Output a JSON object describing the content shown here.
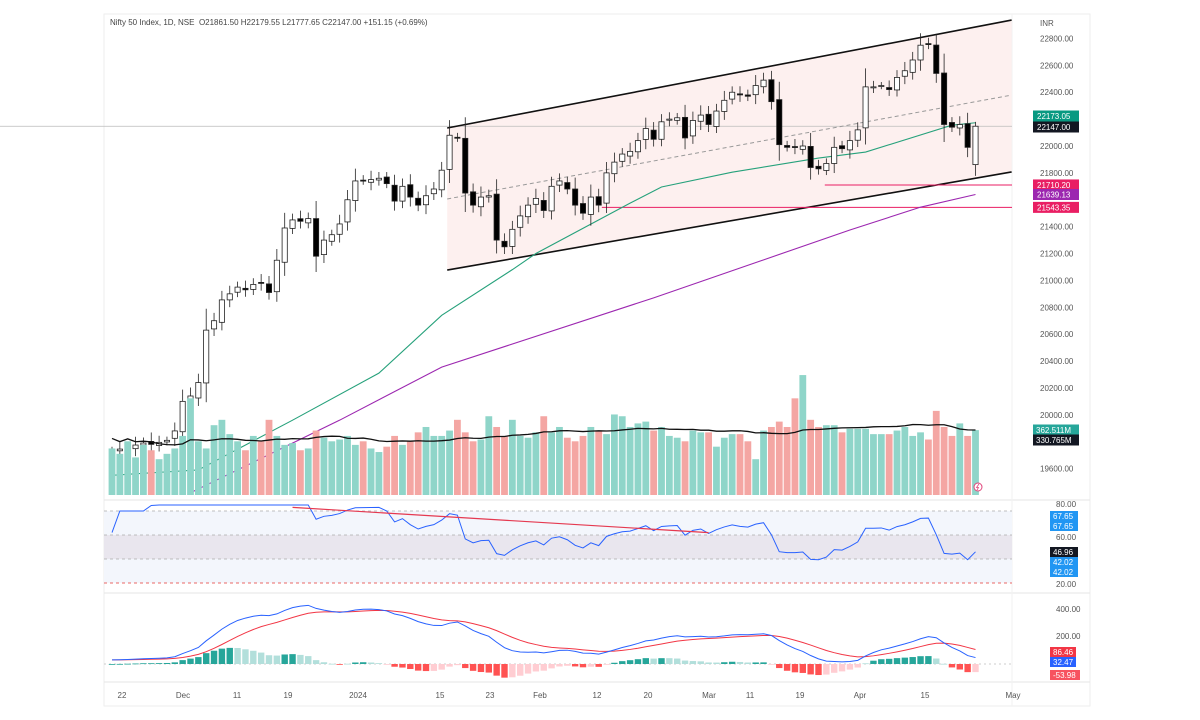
{
  "header": {
    "symbol": "Nifty 50 Index, 1D, NSE",
    "ohlc": "O21861.50 H22179.55 L21777.65 C22147.00 +151.15 (+0.69%)"
  },
  "last_bar": {
    "open": 21861.5,
    "high": 22179.55,
    "low": 21777.65,
    "close": 22147.0
  },
  "currency": "INR",
  "chart_data": [
    {
      "type": "candlestick",
      "title": "",
      "ylim": [
        19450,
        22950
      ],
      "price_ticks": [
        "22800.00",
        "22600.00",
        "22400.00",
        "22000.00",
        "21800.00",
        "21400.00",
        "21200.00",
        "21000.00",
        "20800.00",
        "20600.00",
        "20400.00",
        "20200.00",
        "20000.00",
        "19600.00"
      ],
      "date_ticks": [
        "22",
        "Dec",
        "11",
        "19",
        "2024",
        "15",
        "23",
        "Feb",
        "12",
        "20",
        "Mar",
        "11",
        "19",
        "Apr",
        "15",
        "May"
      ],
      "closes": [
        19735,
        19745,
        19760,
        19775,
        19790,
        19780,
        19795,
        19810,
        19880,
        20100,
        20140,
        20240,
        20630,
        20700,
        20855,
        20900,
        20950,
        20930,
        20970,
        20980,
        20910,
        21150,
        21390,
        21450,
        21440,
        21460,
        21180,
        21300,
        21340,
        21420,
        21600,
        21740,
        21745,
        21750,
        21760,
        21720,
        21590,
        21700,
        21620,
        21560,
        21630,
        21680,
        21820,
        22080,
        22060,
        21650,
        21560,
        21620,
        21630,
        21300,
        21250,
        21380,
        21480,
        21560,
        21610,
        21520,
        21700,
        21740,
        21680,
        21560,
        21500,
        21620,
        21560,
        21800,
        21880,
        21940,
        21960,
        22040,
        22130,
        22050,
        22180,
        22200,
        22210,
        22060,
        22190,
        22230,
        22160,
        22260,
        22340,
        22400,
        22380,
        22370,
        22450,
        22490,
        22330,
        22010,
        21990,
        21990,
        22000,
        21840,
        21830,
        21870,
        21990,
        21980,
        22040,
        22120,
        22440,
        22440,
        22450,
        22420,
        22510,
        22560,
        22640,
        22750,
        22760,
        22540,
        22160,
        22140,
        22160,
        21990,
        22147
      ],
      "volume_millions": [
        260,
        230,
        300,
        210,
        280,
        250,
        200,
        230,
        260,
        330,
        540,
        300,
        260,
        390,
        420,
        340,
        300,
        250,
        330,
        300,
        420,
        330,
        280,
        290,
        250,
        260,
        360,
        320,
        300,
        310,
        330,
        280,
        300,
        260,
        240,
        270,
        330,
        280,
        300,
        350,
        380,
        330,
        330,
        360,
        420,
        350,
        300,
        310,
        440,
        380,
        330,
        420,
        330,
        320,
        350,
        440,
        350,
        380,
        320,
        300,
        330,
        380,
        360,
        340,
        450,
        440,
        380,
        400,
        410,
        360,
        380,
        330,
        320,
        300,
        360,
        350,
        350,
        270,
        320,
        340,
        340,
        300,
        200,
        360,
        380,
        410,
        380,
        540,
        670,
        420,
        380,
        390,
        390,
        350,
        370,
        370,
        370,
        340,
        340,
        340,
        360,
        380,
        330,
        350,
        310,
        470,
        380,
        330,
        400,
        330,
        362.5
      ],
      "ema_green": [
        [
          0,
          19550
        ],
        [
          11,
          19590
        ],
        [
          23,
          19960
        ],
        [
          34,
          20310
        ],
        [
          42,
          20740
        ],
        [
          51,
          21080
        ],
        [
          54,
          21200
        ],
        [
          66,
          21575
        ],
        [
          70,
          21695
        ],
        [
          79,
          21805
        ],
        [
          90,
          21910
        ],
        [
          96,
          21955
        ],
        [
          107,
          22155
        ],
        [
          110,
          22173.05
        ]
      ],
      "ma_purple": [
        [
          10,
          19420
        ],
        [
          16,
          19590
        ],
        [
          29,
          19960
        ],
        [
          42,
          20355
        ],
        [
          69,
          20870
        ],
        [
          94,
          21375
        ],
        [
          103,
          21545
        ],
        [
          110,
          21639.13
        ]
      ],
      "channel": {
        "upper": [
          [
            42.7,
            22134
          ],
          [
            114.6,
            22937
          ]
        ],
        "middle": [
          [
            42.7,
            21606
          ],
          [
            114.6,
            22379
          ]
        ],
        "lower": [
          [
            42.7,
            21077
          ],
          [
            114.6,
            21807
          ]
        ]
      },
      "levels": [
        {
          "price": 21710.2,
          "from_bar": 90.8,
          "color": "#e91e63"
        },
        {
          "price": 21543.35,
          "from_bar": 62.4,
          "color": "#e91e63"
        }
      ],
      "price_labels": [
        {
          "text": "22173.05",
          "price": 22220,
          "color": "#089981"
        },
        {
          "text": "22147.00",
          "price": 22147,
          "color": "#131722"
        },
        {
          "text": "21710.20",
          "price": 21710.2,
          "color": "#e91e63"
        },
        {
          "text": "21639.13",
          "price": 21639.13,
          "color": "#9c27b0"
        },
        {
          "text": "21543.35",
          "price": 21543.35,
          "color": "#e91e63"
        }
      ],
      "volume_labels": [
        {
          "text": "362.511M",
          "color": "#26a69a"
        },
        {
          "text": "330.765M",
          "color": "#131722"
        }
      ]
    },
    {
      "type": "line",
      "indicator": "RSI",
      "ylim": [
        15,
        85
      ],
      "ticks": [
        "80.00",
        "60.00",
        "20.00"
      ],
      "trendline": [
        [
          23,
          83
        ],
        [
          76,
          62
        ]
      ],
      "labels": [
        {
          "text": "67.65",
          "color": "#2196f3"
        },
        {
          "text": "67.65",
          "color": "#2196f3"
        },
        {
          "text": "46.96",
          "color": "#131722"
        },
        {
          "text": "42.02",
          "color": "#2196f3"
        },
        {
          "text": "42.02",
          "color": "#2196f3"
        }
      ]
    },
    {
      "type": "line",
      "indicator": "MACD",
      "ticks": [
        "400.00",
        "200.00"
      ],
      "labels": [
        {
          "text": "86.46",
          "color": "#f23645"
        },
        {
          "text": "32.47",
          "color": "#2962ff"
        },
        {
          "text": "-53.98",
          "color": "#f7525f"
        }
      ]
    }
  ],
  "colors": {
    "up_volume": "#8fd5c9",
    "down_volume": "#f4a6a3",
    "ema": "#26a17b",
    "ma": "#9c27b0",
    "channel_fill": "#fdf0ef",
    "rsi": "#2962ff",
    "macd": "#2962ff",
    "signal": "#f23645"
  }
}
